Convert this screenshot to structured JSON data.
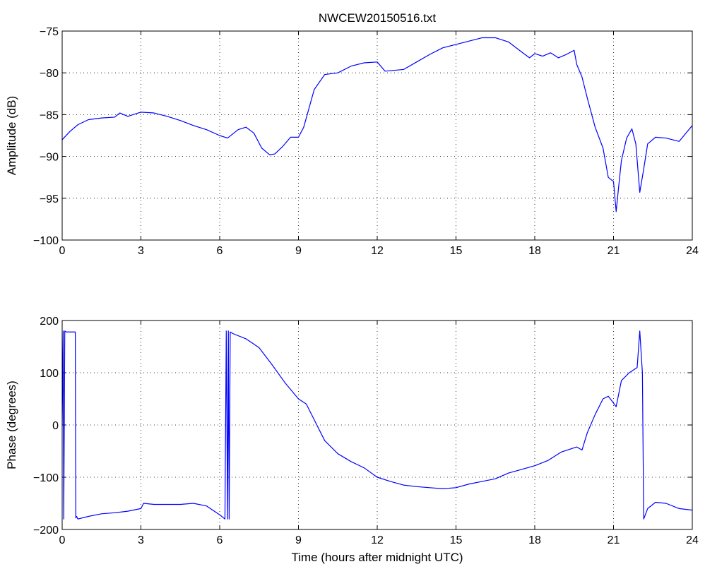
{
  "chart_data": [
    {
      "type": "line",
      "title": "NWCEW20150516.txt",
      "xlabel": "",
      "ylabel": "Amplitude (dB)",
      "xlim": [
        0,
        24
      ],
      "ylim": [
        -100,
        -75
      ],
      "xticks": [
        0,
        3,
        6,
        9,
        12,
        15,
        18,
        21,
        24
      ],
      "yticks": [
        -75,
        -80,
        -85,
        -90,
        -95,
        -100
      ],
      "grid": true,
      "color": "#0000ff",
      "series": [
        {
          "x": [
            0,
            0.3,
            0.6,
            1,
            1.5,
            2,
            2.2,
            2.5,
            3,
            3.5,
            4,
            4.5,
            5,
            5.5,
            6,
            6.3,
            6.7,
            7,
            7.3,
            7.6,
            7.9,
            8.1,
            8.4,
            8.7,
            9,
            9.2,
            9.6,
            10,
            10.5,
            11,
            11.5,
            12,
            12.3,
            13,
            13.5,
            14,
            14.5,
            15,
            15.5,
            16,
            16.5,
            17,
            17.5,
            17.8,
            18,
            18.3,
            18.6,
            18.9,
            19.2,
            19.5,
            19.6,
            19.8,
            20,
            20.3,
            20.6,
            20.8,
            21,
            21.1,
            21.2,
            21.3,
            21.5,
            21.7,
            21.85,
            22,
            22.15,
            22.3,
            22.6,
            23,
            23.5,
            24
          ],
          "y": [
            -88,
            -87,
            -86.2,
            -85.6,
            -85.4,
            -85.3,
            -84.8,
            -85.2,
            -84.7,
            -84.8,
            -85.2,
            -85.7,
            -86.3,
            -86.8,
            -87.5,
            -87.8,
            -86.8,
            -86.5,
            -87.2,
            -89,
            -89.8,
            -89.7,
            -88.8,
            -87.7,
            -87.7,
            -86.5,
            -82,
            -80.2,
            -80,
            -79.2,
            -78.8,
            -78.7,
            -79.8,
            -79.6,
            -78.7,
            -77.8,
            -77,
            -76.6,
            -76.2,
            -75.8,
            -75.8,
            -76.3,
            -77.5,
            -78.2,
            -77.7,
            -78,
            -77.6,
            -78.2,
            -77.8,
            -77.3,
            -79,
            -80.5,
            -83,
            -86.5,
            -89,
            -92.5,
            -93,
            -96.6,
            -93.5,
            -90.5,
            -87.8,
            -86.7,
            -88.5,
            -94.3,
            -91.5,
            -88.5,
            -87.7,
            -87.8,
            -88.2,
            -86.3
          ]
        }
      ]
    },
    {
      "type": "line",
      "title": "",
      "xlabel": "Time (hours after midnight UTC)",
      "ylabel": "Phase (degrees)",
      "xlim": [
        0,
        24
      ],
      "ylim": [
        -200,
        200
      ],
      "xticks": [
        0,
        3,
        6,
        9,
        12,
        15,
        18,
        21,
        24
      ],
      "yticks": [
        200,
        100,
        0,
        -100,
        -200
      ],
      "grid": true,
      "color": "#0000ff",
      "series": [
        {
          "x": [
            0,
            0.04,
            0.06,
            0.1,
            0.15,
            0.3,
            0.5,
            0.52,
            0.55,
            0.6,
            1,
            1.5,
            2,
            2.5,
            3,
            3.1,
            3.5,
            4,
            4.5,
            5,
            5.5,
            6,
            6.2,
            6.25,
            6.3,
            6.33,
            6.36,
            6.4,
            6.5,
            7,
            7.5,
            8,
            8.5,
            9,
            9.3,
            9.6,
            10,
            10.5,
            11,
            11.5,
            12,
            12.5,
            13,
            13.5,
            14,
            14.5,
            15,
            15.5,
            16,
            16.5,
            17,
            17.5,
            18,
            18.5,
            19,
            19.3,
            19.6,
            19.8,
            20,
            20.3,
            20.6,
            20.8,
            21,
            21.1,
            21.3,
            21.6,
            21.9,
            22,
            22.1,
            22.15,
            22.3,
            22.6,
            23,
            23.5,
            24
          ],
          "y": [
            0,
            180,
            -180,
            180,
            178,
            178,
            178,
            -178,
            -175,
            -180,
            -175,
            -170,
            -168,
            -165,
            -160,
            -150,
            -152,
            -152,
            -152,
            -150,
            -155,
            -172,
            -180,
            180,
            -180,
            180,
            -180,
            178,
            175,
            165,
            148,
            115,
            80,
            50,
            40,
            10,
            -30,
            -55,
            -70,
            -82,
            -100,
            -108,
            -115,
            -118,
            -120,
            -122,
            -120,
            -113,
            -108,
            -103,
            -92,
            -85,
            -78,
            -68,
            -52,
            -47,
            -42,
            -48,
            -15,
            20,
            50,
            55,
            42,
            35,
            85,
            100,
            110,
            180,
            100,
            -180,
            -160,
            -148,
            -150,
            -160,
            -163
          ]
        }
      ]
    }
  ]
}
